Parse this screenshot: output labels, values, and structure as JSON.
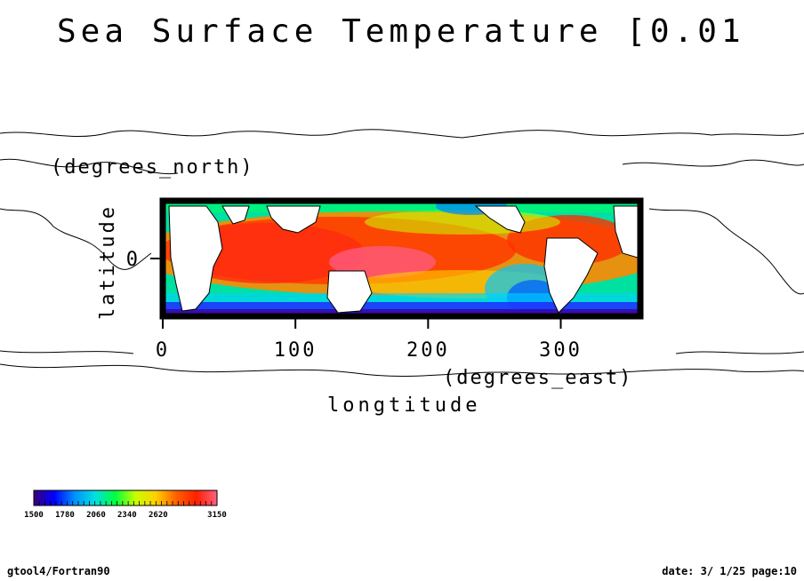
{
  "chart_data": {
    "type": "heatmap",
    "title": "Sea Surface Temperature [0.01",
    "xlabel": "longtitude",
    "xunits": "(degrees_east)",
    "ylabel": "latitude",
    "yunits": "(degrees_north)",
    "xlim": [
      0,
      360
    ],
    "ylim": [
      -60,
      60
    ],
    "xticks": [
      0,
      100,
      200,
      300
    ],
    "xtick_labels": [
      "0",
      "100",
      "200",
      "300"
    ],
    "yticks": [
      0
    ],
    "ytick_labels": [
      "0"
    ],
    "colorbar": {
      "min": 1500,
      "max": 3150,
      "labels": [
        "1500",
        "1780",
        "2060",
        "2340",
        "2620",
        "3150"
      ],
      "colors": [
        "#3a0078",
        "#0000ff",
        "#0090ff",
        "#00e0e0",
        "#00ff40",
        "#c8ff00",
        "#ffd000",
        "#ff6000",
        "#ff2000",
        "#ff6080"
      ]
    }
  },
  "footer": {
    "left": "gtool4/Fortran90",
    "right": "date: 3/ 1/25 page:10"
  }
}
